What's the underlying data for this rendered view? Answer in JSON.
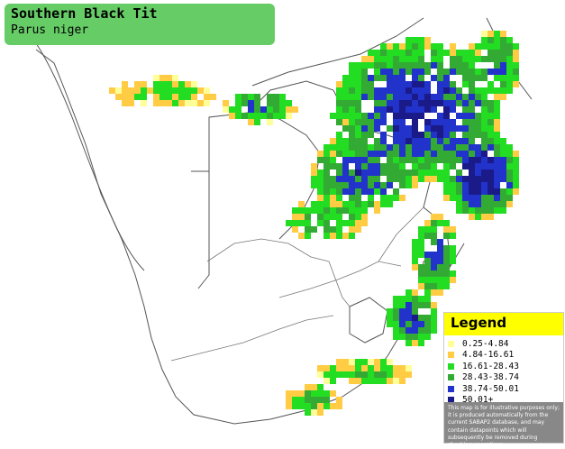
{
  "map": {
    "region": "southern Africa",
    "land_color": "#ffffff",
    "sea_color": "#ffffff",
    "border_color": "#555555"
  },
  "title": {
    "common_name": "Southern Black Tit",
    "scientific_name": "Parus niger",
    "background": "#66cc66"
  },
  "legend": {
    "heading": "Legend",
    "heading_background": "#ffff00",
    "items": [
      {
        "label": "0.25-4.84",
        "color": "#ffff99"
      },
      {
        "label": "4.84-16.61",
        "color": "#ffcc44"
      },
      {
        "label": "16.61-28.43",
        "color": "#22dd22"
      },
      {
        "label": "28.43-38.74",
        "color": "#33aa33"
      },
      {
        "label": "38.74-50.01",
        "color": "#2233cc"
      },
      {
        "label": "50.01+",
        "color": "#1a1a88"
      }
    ],
    "disclaimer": "This map is for illustrative purposes only; it is produced automatically from the current SABAP2 database, and may contain datapoints which will subsequently be removed during checking operations."
  }
}
